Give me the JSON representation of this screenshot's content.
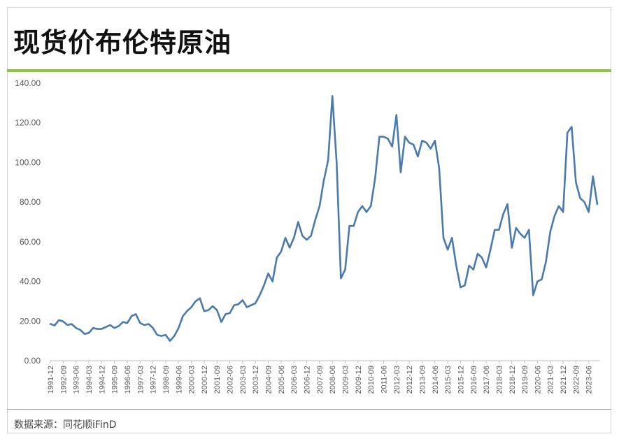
{
  "title": "现货价布伦特原油",
  "source": "数据来源：同花顺iFinD",
  "colors": {
    "line": "#4a7aae",
    "accent": "#8dc63f",
    "axis": "#bfbfbf"
  },
  "chart_data": {
    "type": "line",
    "title": "现货价布伦特原油",
    "xlabel": "",
    "ylabel": "",
    "ylim": [
      0,
      140
    ],
    "y_ticks": [
      "0.00",
      "20.00",
      "40.00",
      "60.00",
      "80.00",
      "100.00",
      "120.00",
      "140.00"
    ],
    "x_ticks": [
      "1991-12",
      "1992-09",
      "1993-06",
      "1994-03",
      "1994-12",
      "1995-09",
      "1996-06",
      "1997-03",
      "1997-12",
      "1998-09",
      "1999-06",
      "2000-03",
      "2000-12",
      "2001-09",
      "2002-06",
      "2003-03",
      "2003-12",
      "2004-09",
      "2005-06",
      "2006-03",
      "2006-12",
      "2007-09",
      "2008-06",
      "2009-03",
      "2009-12",
      "2010-09",
      "2011-06",
      "2012-03",
      "2012-12",
      "2013-09",
      "2014-06",
      "2015-03",
      "2015-12",
      "2016-09",
      "2017-06",
      "2018-03",
      "2018-12",
      "2019-09",
      "2020-06",
      "2021-03",
      "2021-12",
      "2022-09",
      "2023-06"
    ],
    "grid": false,
    "series": [
      {
        "name": "",
        "x": [
          "1991-12",
          "1992-03",
          "1992-06",
          "1992-09",
          "1992-12",
          "1993-03",
          "1993-06",
          "1993-09",
          "1993-12",
          "1994-03",
          "1994-06",
          "1994-09",
          "1994-12",
          "1995-03",
          "1995-06",
          "1995-09",
          "1995-12",
          "1996-03",
          "1996-06",
          "1996-09",
          "1996-12",
          "1997-03",
          "1997-06",
          "1997-09",
          "1997-12",
          "1998-03",
          "1998-06",
          "1998-09",
          "1998-12",
          "1999-03",
          "1999-06",
          "1999-09",
          "1999-12",
          "2000-03",
          "2000-06",
          "2000-09",
          "2000-12",
          "2001-03",
          "2001-06",
          "2001-09",
          "2001-12",
          "2002-03",
          "2002-06",
          "2002-09",
          "2002-12",
          "2003-03",
          "2003-06",
          "2003-09",
          "2003-12",
          "2004-03",
          "2004-06",
          "2004-09",
          "2004-12",
          "2005-03",
          "2005-06",
          "2005-09",
          "2005-12",
          "2006-03",
          "2006-06",
          "2006-09",
          "2006-12",
          "2007-03",
          "2007-06",
          "2007-09",
          "2007-12",
          "2008-03",
          "2008-06",
          "2008-09",
          "2008-12",
          "2009-03",
          "2009-06",
          "2009-09",
          "2009-12",
          "2010-03",
          "2010-06",
          "2010-09",
          "2010-12",
          "2011-03",
          "2011-06",
          "2011-09",
          "2011-12",
          "2012-03",
          "2012-06",
          "2012-09",
          "2012-12",
          "2013-03",
          "2013-06",
          "2013-09",
          "2013-12",
          "2014-03",
          "2014-06",
          "2014-09",
          "2014-12",
          "2015-03",
          "2015-06",
          "2015-09",
          "2015-12",
          "2016-03",
          "2016-06",
          "2016-09",
          "2016-12",
          "2017-03",
          "2017-06",
          "2017-09",
          "2017-12",
          "2018-03",
          "2018-06",
          "2018-09",
          "2018-12",
          "2019-03",
          "2019-06",
          "2019-09",
          "2019-12",
          "2020-03",
          "2020-06",
          "2020-09",
          "2020-12",
          "2021-03",
          "2021-06",
          "2021-09",
          "2021-12",
          "2022-03",
          "2022-06",
          "2022-09",
          "2022-12",
          "2023-03",
          "2023-06",
          "2023-09",
          "2023-12"
        ],
        "values": [
          18.5,
          17.8,
          20.5,
          19.8,
          18.0,
          18.5,
          16.5,
          15.5,
          13.5,
          14.0,
          16.5,
          16.0,
          16.0,
          17.0,
          18.0,
          16.5,
          17.5,
          19.5,
          19.0,
          22.5,
          23.5,
          19.0,
          18.0,
          18.5,
          16.5,
          13.0,
          12.5,
          13.0,
          10.0,
          12.5,
          16.5,
          22.5,
          25.0,
          27.0,
          30.0,
          31.5,
          25.0,
          25.5,
          27.5,
          25.5,
          19.5,
          23.5,
          24.0,
          28.0,
          28.5,
          30.5,
          27.0,
          28.0,
          29.0,
          33.0,
          38.0,
          44.0,
          40.0,
          52.0,
          55.0,
          62.0,
          57.0,
          62.0,
          70.0,
          63.0,
          61.0,
          63.0,
          71.0,
          78.0,
          91.0,
          101.0,
          133.5,
          100.0,
          41.5,
          46.0,
          68.0,
          68.0,
          75.0,
          78.0,
          75.0,
          78.0,
          92.0,
          113.0,
          113.0,
          112.0,
          108.0,
          124.0,
          95.0,
          113.0,
          110.0,
          109.0,
          103.0,
          111.0,
          110.0,
          107.0,
          111.0,
          97.0,
          62.0,
          56.0,
          62.0,
          48.0,
          37.0,
          38.0,
          48.0,
          46.0,
          54.0,
          52.0,
          47.0,
          56.0,
          66.0,
          66.0,
          74.0,
          79.0,
          57.0,
          67.0,
          64.0,
          62.0,
          66.0,
          33.0,
          40.0,
          41.0,
          50.0,
          65.0,
          73.0,
          78.0,
          75.0,
          115.0,
          118.0,
          90.0,
          82.0,
          80.0,
          75.0,
          93.0,
          79.0
        ]
      }
    ]
  }
}
